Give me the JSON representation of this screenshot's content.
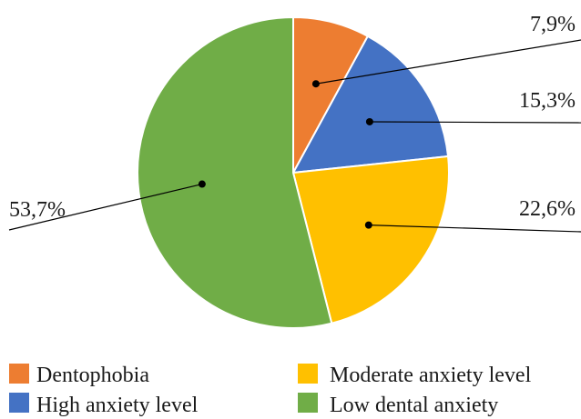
{
  "chart_data": {
    "type": "pie",
    "title": "",
    "slices": [
      {
        "name": "Dentophobia",
        "value": 7.9,
        "label": "7,9%",
        "color": "#ED7D31"
      },
      {
        "name": "High anxiety level",
        "value": 15.3,
        "label": "15,3%",
        "color": "#4472C4"
      },
      {
        "name": "Moderate anxiety level",
        "value": 22.6,
        "label": "22,6%",
        "color": "#FFC000"
      },
      {
        "name": "Low dental anxiety",
        "value": 53.7,
        "label": "53,7%",
        "color": "#70AD47"
      }
    ],
    "legend": {
      "placement": "bottom",
      "items": [
        "Dentophobia",
        "Moderate anxiety level",
        "High anxiety level",
        "Low dental anxiety"
      ]
    }
  }
}
